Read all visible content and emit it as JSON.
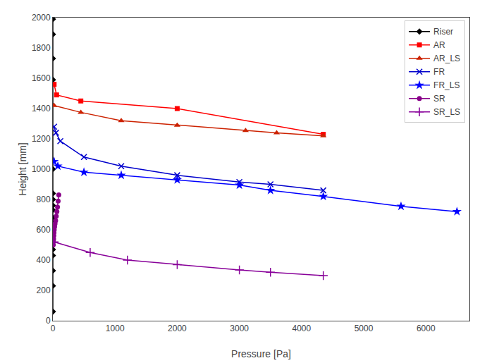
{
  "chart_data": {
    "type": "line",
    "xlabel": "Pressure [Pa]",
    "ylabel": "Height [mm]",
    "xlim": [
      0,
      6700
    ],
    "ylim": [
      0,
      2000
    ],
    "xticks": [
      0,
      1000,
      2000,
      3000,
      4000,
      5000,
      6000
    ],
    "yticks": [
      0,
      200,
      400,
      600,
      800,
      1000,
      1200,
      1400,
      1600,
      1800,
      2000
    ],
    "grid": false,
    "legend": "upper right",
    "series": [
      {
        "name": "Riser",
        "color": "#000000",
        "marker": "diamond",
        "line_style": "solid",
        "x": [
          0,
          0,
          0,
          0,
          0,
          0,
          0,
          0,
          0,
          0,
          0,
          0,
          0,
          0,
          0,
          0,
          0,
          0,
          0,
          0
        ],
        "values": [
          60,
          230,
          330,
          430,
          470,
          500,
          530,
          560,
          600,
          640,
          680,
          730,
          760,
          800,
          840,
          1000,
          1590,
          1730,
          1890,
          1990
        ]
      },
      {
        "name": "AR",
        "color": "#ff0000",
        "marker": "square",
        "line_style": "solid",
        "x": [
          20,
          60,
          450,
          2000,
          4350
        ],
        "values": [
          1560,
          1490,
          1450,
          1400,
          1230
        ]
      },
      {
        "name": "AR_LS",
        "color": "#cc2200",
        "marker": "triangle",
        "line_style": "solid",
        "x": [
          20,
          450,
          1100,
          2000,
          3100,
          3600,
          4350
        ],
        "values": [
          1420,
          1375,
          1320,
          1290,
          1255,
          1240,
          1220
        ]
      },
      {
        "name": "FR",
        "color": "#0000cc",
        "marker": "x",
        "line_style": "solid",
        "x": [
          20,
          50,
          120,
          500,
          1100,
          2000,
          3000,
          3500,
          4350
        ],
        "values": [
          1280,
          1240,
          1185,
          1080,
          1020,
          960,
          915,
          900,
          860
        ]
      },
      {
        "name": "FR_LS",
        "color": "#0000ff",
        "marker": "star",
        "line_style": "solid",
        "x": [
          20,
          80,
          500,
          1100,
          2000,
          3000,
          3500,
          4350,
          5600,
          6500
        ],
        "values": [
          1050,
          1020,
          980,
          960,
          930,
          895,
          860,
          820,
          755,
          720
        ]
      },
      {
        "name": "SR",
        "color": "#880088",
        "marker": "circle",
        "line_style": "solid",
        "x": [
          5,
          8,
          12,
          15,
          18,
          22,
          28,
          35,
          45,
          55,
          65,
          75,
          85,
          95
        ],
        "values": [
          500,
          520,
          540,
          560,
          580,
          600,
          620,
          640,
          660,
          690,
          720,
          750,
          790,
          830
        ]
      },
      {
        "name": "SR_LS",
        "color": "#880099",
        "marker": "plus",
        "line_style": "solid",
        "x": [
          20,
          600,
          1200,
          2000,
          3000,
          3500,
          4350
        ],
        "values": [
          520,
          450,
          400,
          370,
          335,
          320,
          298
        ]
      }
    ]
  }
}
